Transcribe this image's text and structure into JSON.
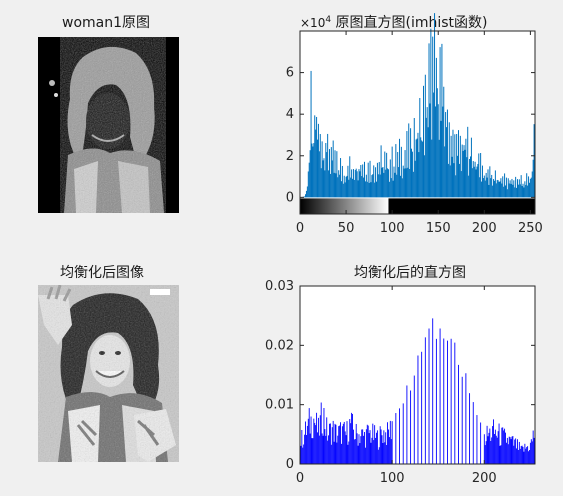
{
  "figure": {
    "title_img1": "woman1原图",
    "title_hist1": "原图直方图(imhist函数)",
    "title_img2": "均衡化后图像",
    "title_hist2": "均衡化后的直方图",
    "exponent_base": "×10",
    "exponent_power": "4"
  },
  "chart_data": [
    {
      "type": "bar",
      "title": "原图直方图(imhist函数)",
      "xlabel": "",
      "ylabel": "",
      "xlim": [
        0,
        255
      ],
      "ylim": [
        -0.8,
        8
      ],
      "y_unit_multiplier": 10000,
      "x_ticks": [
        "0",
        "50",
        "100",
        "150",
        "200",
        "250"
      ],
      "y_ticks": [
        "0",
        "2",
        "4",
        "6"
      ],
      "bar_color": "#0072bd",
      "colorbar": "grayscale 0-255",
      "profile_points": [
        [
          0,
          0
        ],
        [
          5,
          0.05
        ],
        [
          8,
          0.6
        ],
        [
          10,
          1.6
        ],
        [
          12,
          5.3
        ],
        [
          14,
          3.0
        ],
        [
          17,
          5.8
        ],
        [
          20,
          4.0
        ],
        [
          25,
          3.5
        ],
        [
          30,
          3.1
        ],
        [
          35,
          2.6
        ],
        [
          40,
          2.0
        ],
        [
          45,
          1.8
        ],
        [
          50,
          1.6
        ],
        [
          55,
          1.9
        ],
        [
          60,
          2.2
        ],
        [
          65,
          2.3
        ],
        [
          70,
          2.0
        ],
        [
          75,
          1.8
        ],
        [
          80,
          1.9
        ],
        [
          85,
          2.2
        ],
        [
          90,
          2.3
        ],
        [
          95,
          2.1
        ],
        [
          100,
          2.2
        ],
        [
          105,
          2.4
        ],
        [
          110,
          2.6
        ],
        [
          115,
          2.8
        ],
        [
          120,
          3.3
        ],
        [
          125,
          4.0
        ],
        [
          130,
          4.6
        ],
        [
          135,
          5.3
        ],
        [
          140,
          7.3
        ],
        [
          145,
          8.0
        ],
        [
          150,
          8.0
        ],
        [
          155,
          6.5
        ],
        [
          160,
          4.8
        ],
        [
          165,
          3.3
        ],
        [
          170,
          3.1
        ],
        [
          175,
          3.2
        ],
        [
          180,
          3.4
        ],
        [
          185,
          3.0
        ],
        [
          190,
          2.6
        ],
        [
          195,
          2.2
        ],
        [
          200,
          1.6
        ],
        [
          205,
          1.4
        ],
        [
          210,
          1.3
        ],
        [
          215,
          1.2
        ],
        [
          220,
          1.2
        ],
        [
          225,
          1.1
        ],
        [
          230,
          1.0
        ],
        [
          235,
          1.1
        ],
        [
          240,
          1.1
        ],
        [
          245,
          1.0
        ],
        [
          250,
          1.2
        ],
        [
          255,
          3.6
        ]
      ]
    },
    {
      "type": "bar",
      "title": "均衡化后的直方图",
      "xlabel": "",
      "ylabel": "",
      "xlim": [
        0,
        255
      ],
      "ylim": [
        0,
        0.03
      ],
      "x_ticks": [
        "0",
        "100",
        "200"
      ],
      "y_ticks": [
        "0",
        "0.01",
        "0.02",
        "0.03"
      ],
      "bar_color": "#0000ff",
      "profile_points": [
        [
          0,
          0.004
        ],
        [
          5,
          0.0055
        ],
        [
          10,
          0.0075
        ],
        [
          15,
          0.0085
        ],
        [
          20,
          0.006
        ],
        [
          25,
          0.0095
        ],
        [
          30,
          0.0055
        ],
        [
          35,
          0.0065
        ],
        [
          40,
          0.0055
        ],
        [
          45,
          0.006
        ],
        [
          50,
          0.0055
        ],
        [
          55,
          0.0075
        ],
        [
          60,
          0.0055
        ],
        [
          65,
          0.0055
        ],
        [
          70,
          0.0052
        ],
        [
          75,
          0.0058
        ],
        [
          80,
          0.0052
        ],
        [
          85,
          0.0048
        ],
        [
          90,
          0.0058
        ],
        [
          95,
          0.0055
        ],
        [
          100,
          0.007
        ],
        [
          105,
          0.0095
        ],
        [
          110,
          0.011
        ],
        [
          115,
          0.013
        ],
        [
          120,
          0.0145
        ],
        [
          125,
          0.016
        ],
        [
          130,
          0.0185
        ],
        [
          135,
          0.02
        ],
        [
          140,
          0.0235
        ],
        [
          145,
          0.0235
        ],
        [
          150,
          0.0242
        ],
        [
          155,
          0.0235
        ],
        [
          160,
          0.023
        ],
        [
          165,
          0.0215
        ],
        [
          170,
          0.019
        ],
        [
          175,
          0.0175
        ],
        [
          180,
          0.015
        ],
        [
          185,
          0.0125
        ],
        [
          190,
          0.0095
        ],
        [
          195,
          0.0075
        ],
        [
          200,
          0.005
        ],
        [
          205,
          0.0055
        ],
        [
          210,
          0.006
        ],
        [
          215,
          0.0055
        ],
        [
          220,
          0.005
        ],
        [
          225,
          0.0045
        ],
        [
          230,
          0.004
        ],
        [
          235,
          0.0035
        ],
        [
          240,
          0.0025
        ],
        [
          245,
          0.003
        ],
        [
          250,
          0.0035
        ],
        [
          255,
          0.006
        ]
      ]
    }
  ]
}
